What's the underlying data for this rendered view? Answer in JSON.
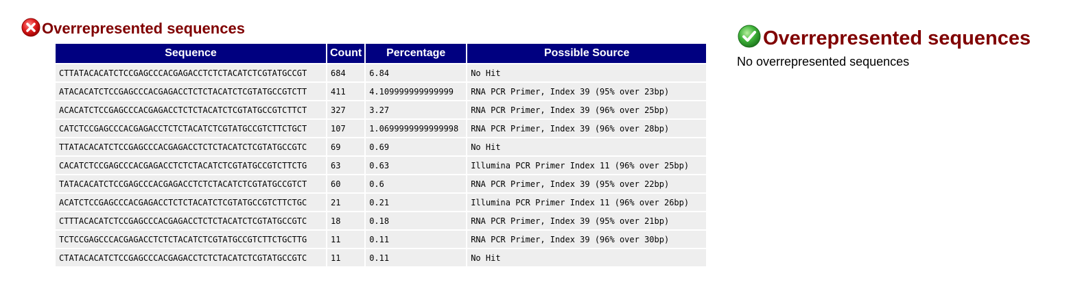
{
  "failed_module": {
    "title": "Overrepresented sequences",
    "status_icon": "cross-circle-icon",
    "status_color": "#cc0000",
    "table": {
      "headers": {
        "sequence": "Sequence",
        "count": "Count",
        "percentage": "Percentage",
        "source": "Possible Source"
      },
      "rows": [
        {
          "sequence": "CTTATACACATCTCCGAGCCCACGAGACCTCTCTACATCTCGTATGCCGT",
          "count": "684",
          "percentage": "6.84",
          "source": "No Hit"
        },
        {
          "sequence": "ATACACATCTCCGAGCCCACGAGACCTCTCTACATCTCGTATGCCGTCTT",
          "count": "411",
          "percentage": "4.109999999999999",
          "source": "RNA PCR Primer, Index 39 (95% over 23bp)"
        },
        {
          "sequence": "ACACATCTCCGAGCCCACGAGACCTCTCTACATCTCGTATGCCGTCTTCT",
          "count": "327",
          "percentage": "3.27",
          "source": "RNA PCR Primer, Index 39 (96% over 25bp)"
        },
        {
          "sequence": "CATCTCCGAGCCCACGAGACCTCTCTACATCTCGTATGCCGTCTTCTGCT",
          "count": "107",
          "percentage": "1.0699999999999998",
          "source": "RNA PCR Primer, Index 39 (96% over 28bp)"
        },
        {
          "sequence": "TTATACACATCTCCGAGCCCACGAGACCTCTCTACATCTCGTATGCCGTC",
          "count": "69",
          "percentage": "0.69",
          "source": "No Hit"
        },
        {
          "sequence": "CACATCTCCGAGCCCACGAGACCTCTCTACATCTCGTATGCCGTCTTCTG",
          "count": "63",
          "percentage": "0.63",
          "source": "Illumina PCR Primer Index 11 (96% over 25bp)"
        },
        {
          "sequence": "TATACACATCTCCGAGCCCACGAGACCTCTCTACATCTCGTATGCCGTCT",
          "count": "60",
          "percentage": "0.6",
          "source": "RNA PCR Primer, Index 39 (95% over 22bp)"
        },
        {
          "sequence": "ACATCTCCGAGCCCACGAGACCTCTCTACATCTCGTATGCCGTCTTCTGC",
          "count": "21",
          "percentage": "0.21",
          "source": "Illumina PCR Primer Index 11 (96% over 26bp)"
        },
        {
          "sequence": "CTTTACACATCTCCGAGCCCACGAGACCTCTCTACATCTCGTATGCCGTC",
          "count": "18",
          "percentage": "0.18",
          "source": "RNA PCR Primer, Index 39 (95% over 21bp)"
        },
        {
          "sequence": "TCTCCGAGCCCACGAGACCTCTCTACATCTCGTATGCCGTCTTCTGCTTG",
          "count": "11",
          "percentage": "0.11",
          "source": "RNA PCR Primer, Index 39 (96% over 30bp)"
        },
        {
          "sequence": "CTATACACATCTCCGAGCCCACGAGACCTCTCTACATCTCGTATGCCGTC",
          "count": "11",
          "percentage": "0.11",
          "source": "No Hit"
        }
      ]
    }
  },
  "passed_module": {
    "title": "Overrepresented sequences",
    "status_icon": "check-circle-icon",
    "status_color": "#2e9e2e",
    "message": "No overrepresented sequences"
  },
  "colors": {
    "heading": "#800000",
    "table_header_bg": "#000080",
    "table_cell_bg": "#eeeeee"
  }
}
